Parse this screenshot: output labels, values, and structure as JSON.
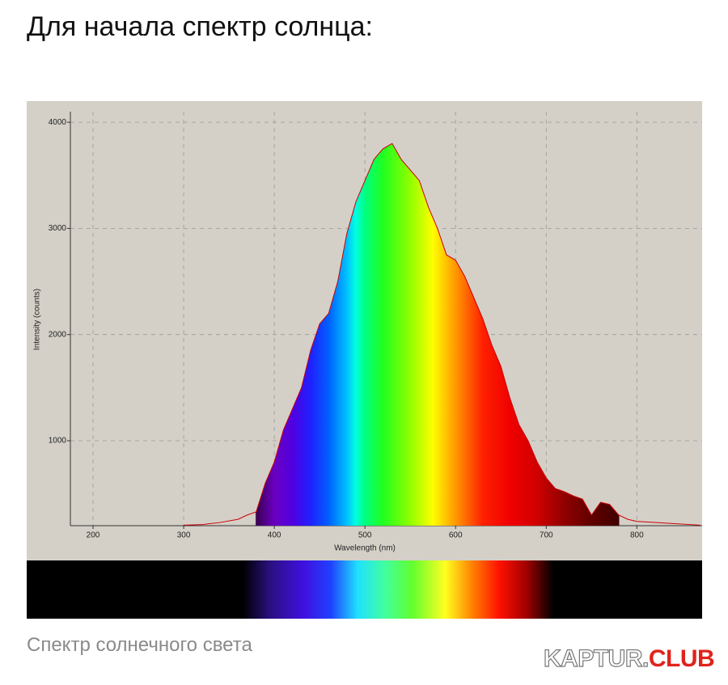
{
  "heading": "Для начала спектр солнца:",
  "caption": "Спектр солнечного света",
  "logo": {
    "brand": "KAPTUR.",
    "suffix": "CLUB"
  },
  "chart_data": {
    "type": "area",
    "x_label": "Wavelength (nm)",
    "y_label": "Intensity (counts)",
    "x": [
      300,
      320,
      340,
      360,
      370,
      380,
      390,
      400,
      410,
      420,
      430,
      440,
      450,
      460,
      470,
      480,
      490,
      500,
      510,
      520,
      530,
      540,
      550,
      560,
      570,
      580,
      590,
      600,
      610,
      620,
      630,
      640,
      650,
      660,
      670,
      680,
      690,
      700,
      710,
      720,
      730,
      740,
      750,
      760,
      770,
      780,
      790,
      800,
      820,
      840,
      860,
      870
    ],
    "series": [
      {
        "name": "Intensity",
        "color": "#cc0000",
        "values": [
          205,
          210,
          230,
          260,
          300,
          330,
          600,
          800,
          1100,
          1300,
          1500,
          1850,
          2100,
          2200,
          2500,
          2950,
          3250,
          3450,
          3650,
          3750,
          3800,
          3650,
          3550,
          3450,
          3200,
          3000,
          2750,
          2700,
          2550,
          2350,
          2150,
          1900,
          1700,
          1400,
          1150,
          1000,
          800,
          650,
          550,
          520,
          480,
          450,
          300,
          420,
          400,
          300,
          260,
          240,
          230,
          220,
          210,
          205
        ]
      }
    ],
    "xlim": [
      175,
      872
    ],
    "ylim": [
      200,
      4100
    ],
    "xticks": [
      200,
      300,
      400,
      500,
      600,
      700,
      800
    ],
    "yticks": [
      1000,
      2000,
      3000,
      4000
    ],
    "grid": true
  }
}
